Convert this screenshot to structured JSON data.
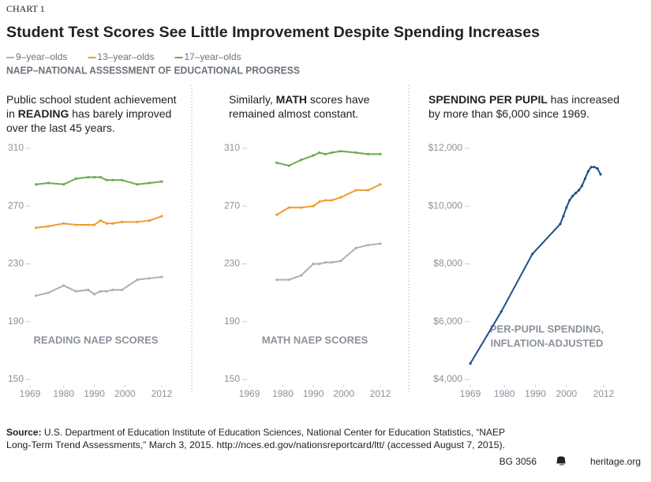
{
  "header": {
    "label": "CHART 1",
    "title": "Student Test Scores See Little Improvement Despite Spending Increases",
    "subtitle": "NAEP–NATIONAL ASSESSMENT OF EDUCATIONAL PROGRESS"
  },
  "chart_data": [
    {
      "type": "line",
      "label": "READING NAEP SCORES",
      "description": [
        [
          {
            "text": "Public school student achievement"
          }
        ],
        [
          {
            "text": "in "
          },
          {
            "text": "READING",
            "bold": true
          },
          {
            "text": " has barely improved"
          }
        ],
        [
          {
            "text": "over the last 45 years."
          }
        ]
      ],
      "x": [
        1971,
        1975,
        1980,
        1984,
        1988,
        1990,
        1992,
        1994,
        1996,
        1999,
        2004,
        2008,
        2012
      ],
      "series": [
        {
          "name": "9–year–olds",
          "color": "#a7b1bc",
          "values": [
            208,
            210,
            215,
            211,
            212,
            209,
            211,
            211,
            212,
            212,
            219,
            220,
            221
          ]
        },
        {
          "name": "13–year–olds",
          "color": "#f39a2c",
          "values": [
            255,
            256,
            258,
            257,
            257,
            257,
            260,
            258,
            258,
            259,
            259,
            260,
            263
          ]
        },
        {
          "name": "17–year–olds",
          "color": "#6aab4f",
          "values": [
            285,
            286,
            285,
            289,
            290,
            290,
            290,
            288,
            288,
            288,
            285,
            286,
            287
          ]
        }
      ],
      "xlim": [
        1969,
        2012
      ],
      "xticks": [
        1969,
        1980,
        1990,
        2000,
        2012
      ],
      "ylim": [
        150,
        310
      ],
      "yticks": [
        150,
        190,
        230,
        270,
        310
      ]
    },
    {
      "type": "line",
      "label": "MATH NAEP SCORES",
      "description": [
        [
          {
            "text": "Similarly, "
          },
          {
            "text": "MATH",
            "bold": true
          },
          {
            "text": " scores have"
          }
        ],
        [
          {
            "text": "remained almost constant."
          }
        ]
      ],
      "x": [
        1978,
        1982,
        1986,
        1990,
        1992,
        1994,
        1996,
        1999,
        2004,
        2008,
        2012
      ],
      "series": [
        {
          "color": "#a7b1bc",
          "values": [
            219,
            219,
            222,
            230,
            230,
            231,
            231,
            232,
            241,
            243,
            244
          ]
        },
        {
          "color": "#f39a2c",
          "values": [
            264,
            269,
            269,
            270,
            273,
            274,
            274,
            276,
            281,
            281,
            285
          ]
        },
        {
          "color": "#6aab4f",
          "values": [
            300,
            298,
            302,
            305,
            307,
            306,
            307,
            308,
            307,
            306,
            306
          ]
        }
      ],
      "xlim": [
        1969,
        2012
      ],
      "xticks": [
        1969,
        1980,
        1990,
        2000,
        2012
      ],
      "ylim": [
        150,
        310
      ],
      "yticks": [
        150,
        190,
        230,
        270,
        310
      ]
    },
    {
      "type": "line",
      "annotation": [
        "PER-PUPIL SPENDING,",
        "INFLATION-ADJUSTED"
      ],
      "description": [
        [
          {
            "text": "SPENDING PER PUPIL",
            "bold": true
          },
          {
            "text": " has increased"
          }
        ],
        [
          {
            "text": "by more than $6,000 since 1969."
          }
        ]
      ],
      "x": [
        1969,
        1979,
        1989,
        1998,
        1999,
        2000,
        2001,
        2002,
        2003,
        2004,
        2005,
        2006,
        2007,
        2008,
        2009,
        2010,
        2011
      ],
      "series": [
        {
          "color": "#1f4e8c",
          "values": [
            4550,
            6350,
            8340,
            9380,
            9650,
            9950,
            10200,
            10350,
            10450,
            10550,
            10700,
            10950,
            11200,
            11350,
            11350,
            11300,
            11100
          ]
        }
      ],
      "xlim": [
        1969,
        2012
      ],
      "xticks": [
        1969,
        1980,
        1990,
        2000,
        2012
      ],
      "ylim": [
        4000,
        12000
      ],
      "yticks": [
        {
          "value": 4000,
          "label": "$4,000"
        },
        {
          "value": 6000,
          "label": "$6,000"
        },
        {
          "value": 8000,
          "label": "$8,000"
        },
        {
          "value": 10000,
          "label": "$10,000"
        },
        {
          "value": 12000,
          "label": "$12,000"
        }
      ]
    }
  ],
  "footer": {
    "source_label": "Source:",
    "source_lines": [
      "U.S. Department of Education Institute of Education Sciences, National Center for Education Statistics, “NAEP",
      "Long-Term Trend Assessments,” March 3, 2015. http://nces.ed.gov/nationsreportcard/ltt/ (accessed August 7, 2015)."
    ],
    "code": "BG 3056",
    "site": "heritage.org"
  }
}
